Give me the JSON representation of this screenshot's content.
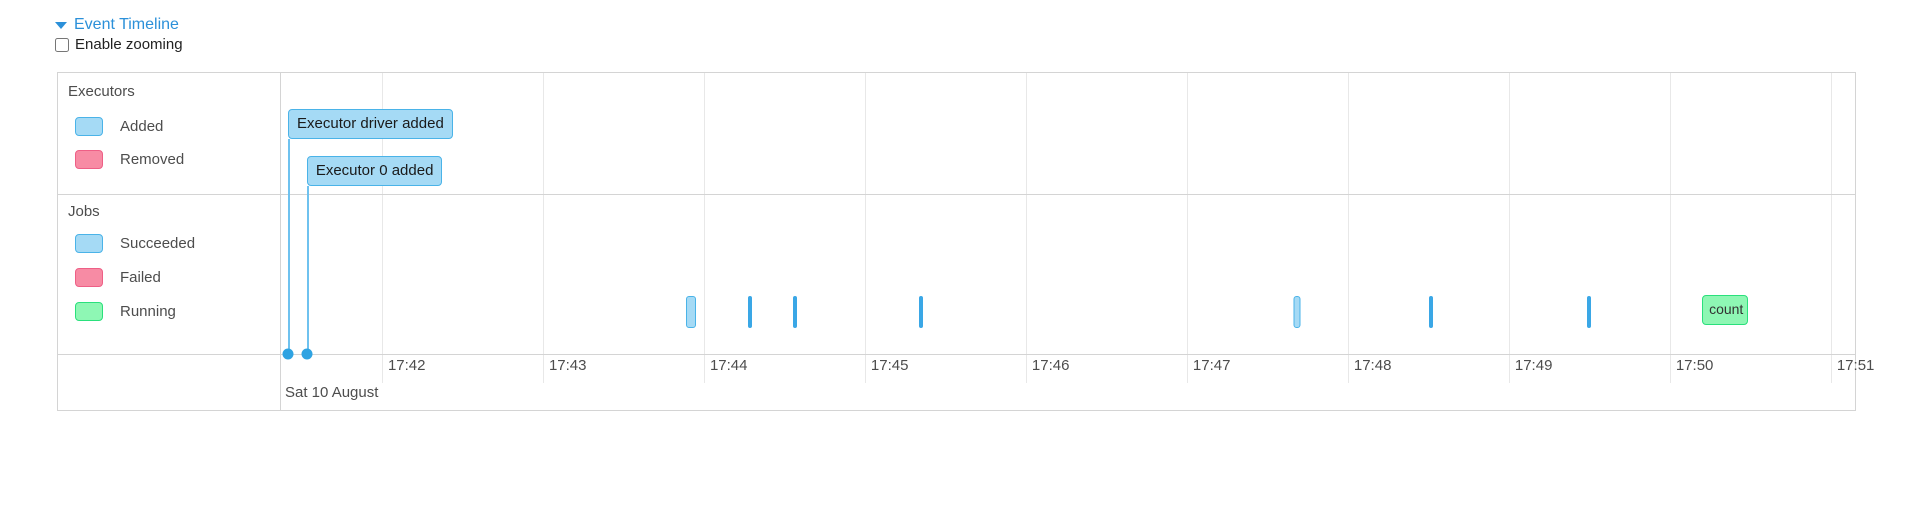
{
  "header": {
    "title": "Event Timeline",
    "checkbox_label": "Enable zooming",
    "checkbox_checked": false
  },
  "colors": {
    "link": "#2b90d9",
    "text": "#4d4d4d",
    "border": "#d4d4d4",
    "grid": "#e8e8e8",
    "blue_fill": "#a5daf5",
    "blue_border": "#4ab3e8",
    "pink_fill": "#f78ba4",
    "pink_border": "#ee5f86",
    "green_fill": "#8ef7b4",
    "green_border": "#2ae07c",
    "dot": "#2fa3e2",
    "connector": "#6fc2ef",
    "thin_bar": "#3aa7e6"
  },
  "legend": {
    "executors": {
      "title": "Executors",
      "items": [
        {
          "label": "Added",
          "color": "blue"
        },
        {
          "label": "Removed",
          "color": "pink"
        }
      ]
    },
    "jobs": {
      "title": "Jobs",
      "items": [
        {
          "label": "Succeeded",
          "color": "blue"
        },
        {
          "label": "Failed",
          "color": "pink"
        },
        {
          "label": "Running",
          "color": "green"
        }
      ]
    }
  },
  "chart_data": {
    "type": "timeline",
    "window_start": "17:41:22",
    "window_end": "17:51:09",
    "axis_ticks": [
      "17:42",
      "17:43",
      "17:44",
      "17:45",
      "17:46",
      "17:47",
      "17:48",
      "17:49",
      "17:50",
      "17:51"
    ],
    "date_label": "Sat 10 August",
    "executor_events": [
      {
        "label": "Executor driver added",
        "time": "17:41:25",
        "kind": "added",
        "row": 0
      },
      {
        "label": "Executor 0 added",
        "time": "17:41:32",
        "kind": "added",
        "row": 1
      }
    ],
    "job_events": [
      {
        "time": "17:43:55",
        "kind": "succeeded",
        "style": "wide"
      },
      {
        "time": "17:44:17",
        "kind": "succeeded",
        "style": "thin"
      },
      {
        "time": "17:44:34",
        "kind": "succeeded",
        "style": "thin"
      },
      {
        "time": "17:45:21",
        "kind": "succeeded",
        "style": "thin"
      },
      {
        "time": "17:47:41",
        "kind": "succeeded",
        "style": "medium"
      },
      {
        "time": "17:48:31",
        "kind": "succeeded",
        "style": "thin"
      },
      {
        "time": "17:49:30",
        "kind": "succeeded",
        "style": "thin"
      },
      {
        "label": "count",
        "start": "17:50:12",
        "end": "17:50:29",
        "kind": "running"
      }
    ]
  }
}
